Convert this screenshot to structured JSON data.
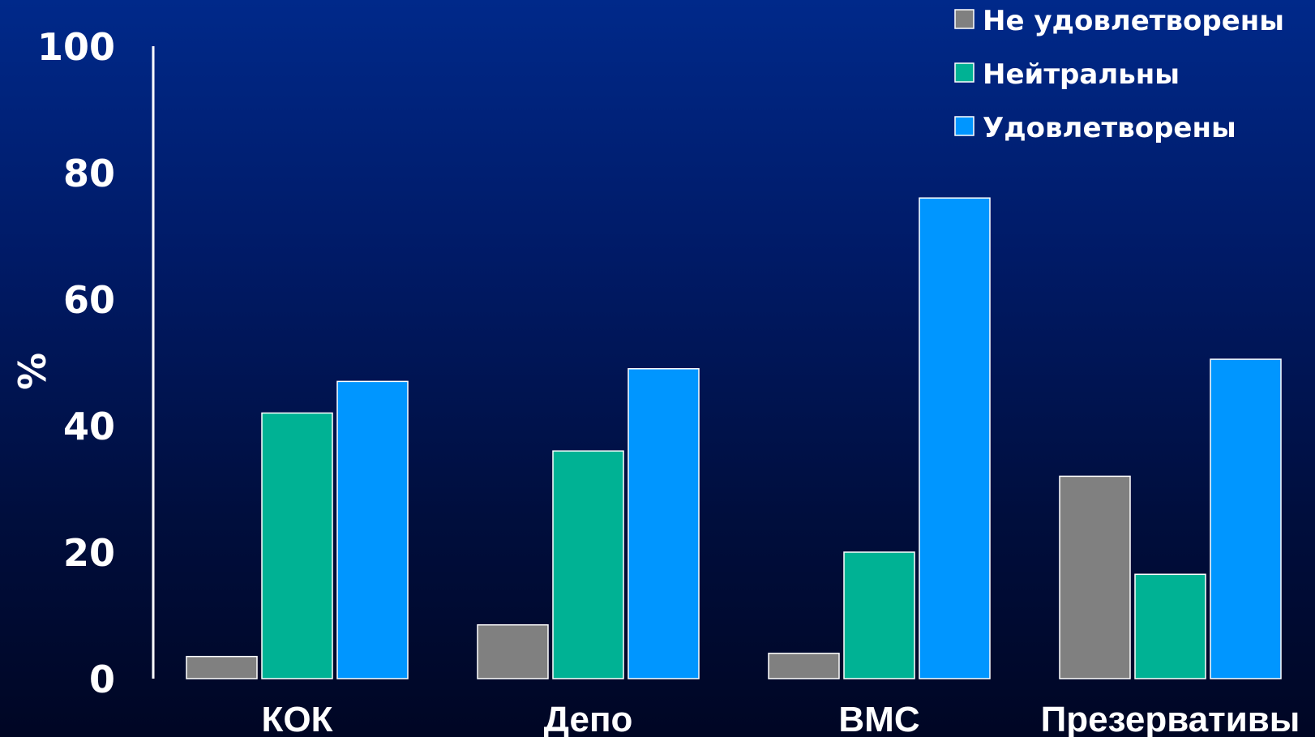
{
  "chart_data": {
    "type": "bar",
    "title": "",
    "xlabel": "",
    "ylabel": "%",
    "ylim": [
      0,
      100
    ],
    "yticks": [
      "0",
      "20",
      "40",
      "60",
      "80",
      "100"
    ],
    "categories": [
      "КОК",
      "Депо",
      "ВМС",
      "Презервативы"
    ],
    "series": [
      {
        "name": "Не удовлетворены",
        "color": "#808080",
        "values": [
          3.5,
          8.5,
          4,
          32
        ]
      },
      {
        "name": "Нейтральны",
        "color": "#00b294",
        "values": [
          42,
          36,
          20,
          16.5
        ]
      },
      {
        "name": "Удовлетворены",
        "color": "#0096ff",
        "values": [
          47,
          49,
          76,
          50.5
        ]
      }
    ],
    "legend_position": "top-right",
    "grid": false
  }
}
